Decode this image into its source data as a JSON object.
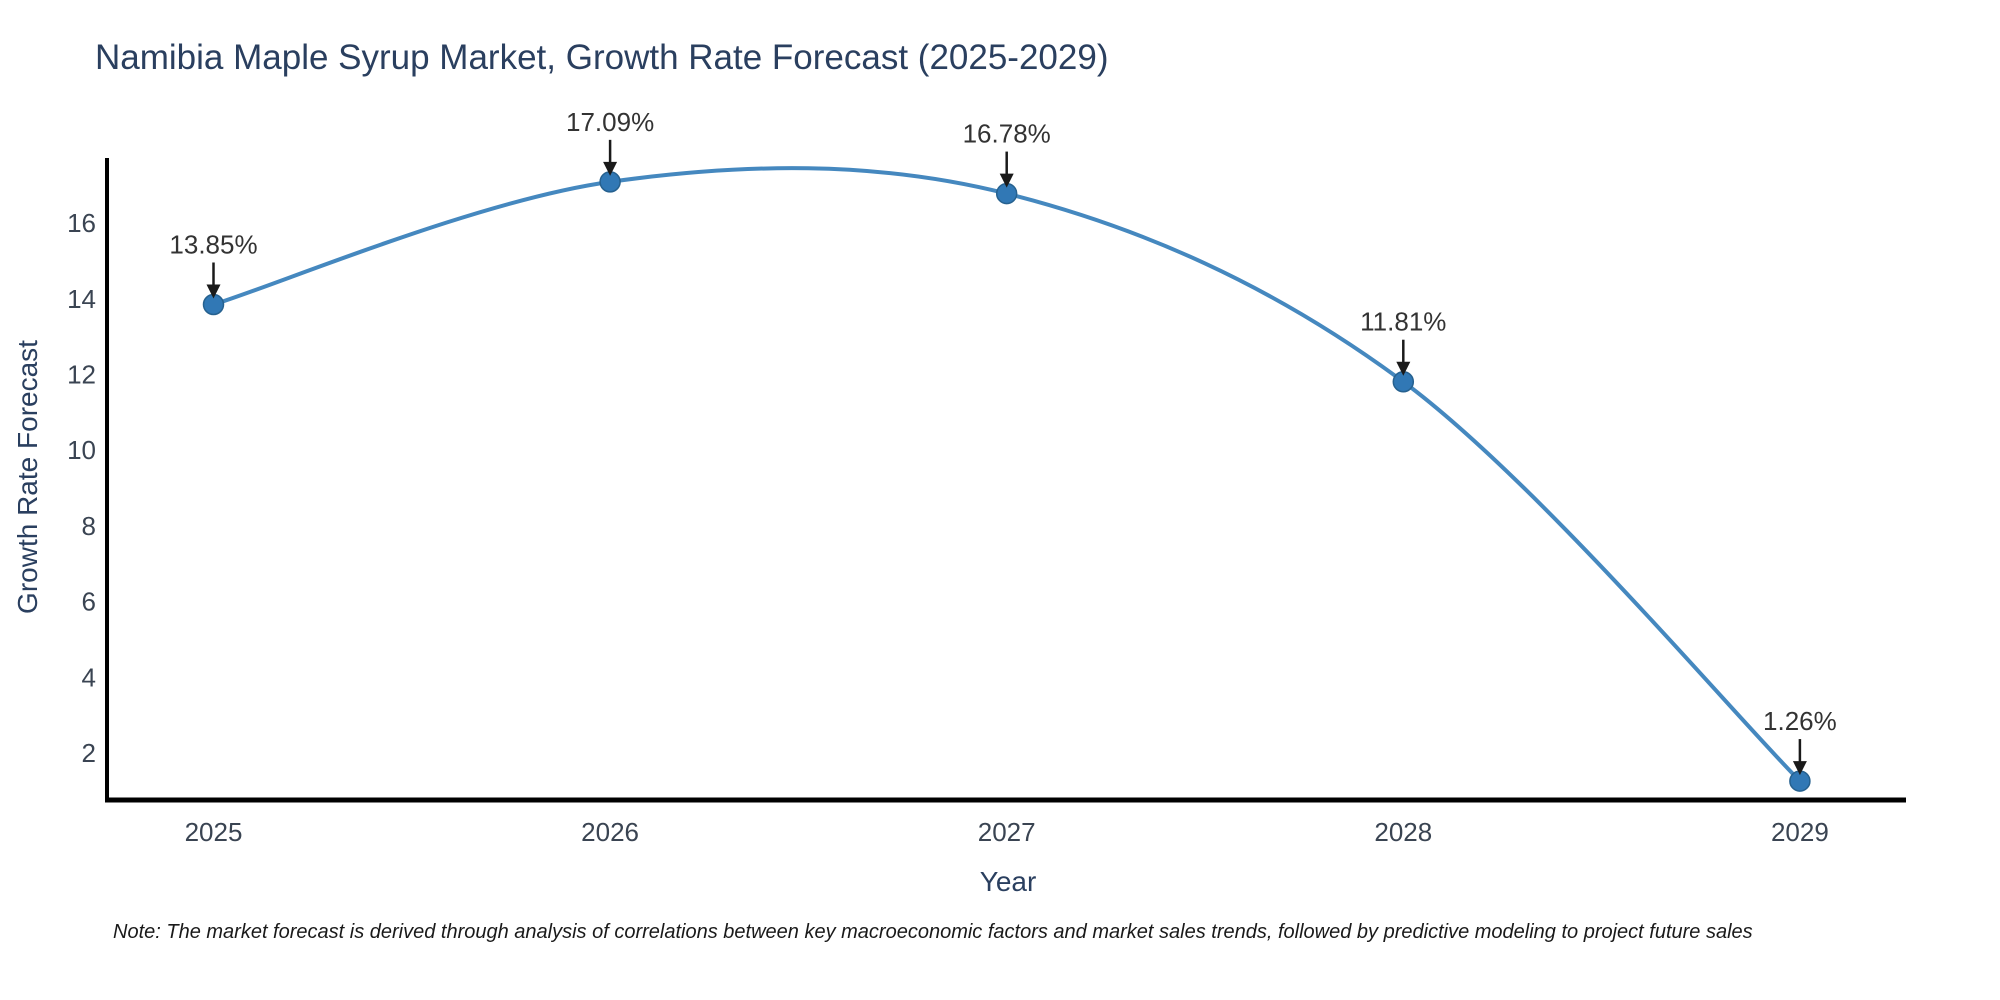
{
  "title": "Namibia Maple Syrup Market, Growth Rate Forecast (2025-2029)",
  "note": "Note: The market forecast is derived through analysis of correlations between key macroeconomic factors and market sales trends, followed by predictive modeling to project future sales",
  "chart_data": {
    "type": "line",
    "title": "Namibia Maple Syrup Market, Growth Rate Forecast (2025-2029)",
    "xlabel": "Year",
    "ylabel": "Growth Rate Forecast",
    "x": [
      "2025",
      "2026",
      "2027",
      "2028",
      "2029"
    ],
    "series": [
      {
        "name": "Growth Rate Forecast",
        "values": [
          13.85,
          17.09,
          16.78,
          11.81,
          1.26
        ]
      }
    ],
    "point_labels": [
      "13.85%",
      "17.09%",
      "16.78%",
      "11.81%",
      "1.26%"
    ],
    "yticks": [
      2,
      4,
      6,
      8,
      10,
      12,
      14,
      16
    ],
    "ylim": [
      0.76,
      17.72
    ],
    "line_shape": "spline",
    "grid": false,
    "legend": false,
    "marker_style": "circle",
    "annotation_arrows": "down",
    "colors": {
      "line": "#4588bf",
      "marker_fill": "#3178b5",
      "marker_edge": "#26618f",
      "axis_line": "#000000",
      "tick_text": "#3a4452",
      "title_text": "#2a3f5f",
      "annotation_text": "#333333",
      "annotation_arrow": "#1a1a1a",
      "note_text": "#1a1a1a",
      "background": "#ffffff"
    }
  }
}
